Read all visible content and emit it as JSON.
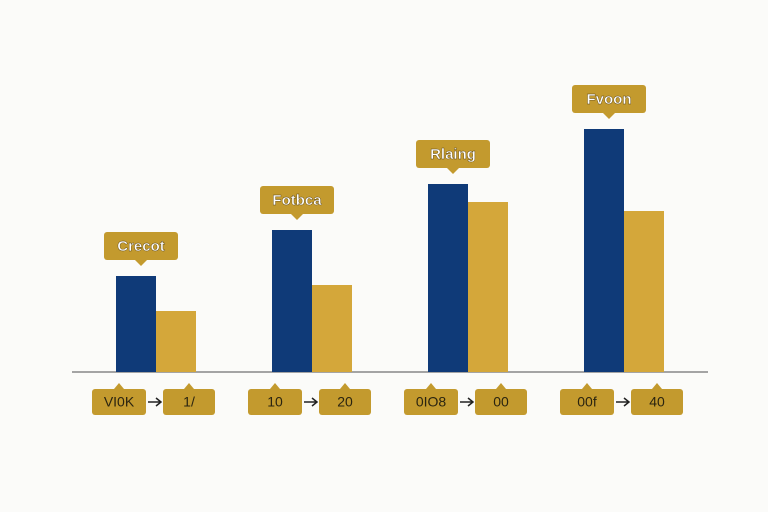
{
  "chart_data": {
    "type": "bar",
    "categories": [
      "Crecot",
      "Fotbca",
      "Rlaing",
      "Fvoon"
    ],
    "series": [
      {
        "color": "#0f3a78",
        "values": [
          96,
          142,
          188,
          243
        ]
      },
      {
        "color": "#d4a73a",
        "values": [
          61,
          87,
          170,
          161
        ]
      }
    ],
    "from_labels": [
      "VI0K",
      "10",
      "0IO8",
      "00f"
    ],
    "to_labels": [
      "1/",
      "20",
      "00",
      "40"
    ],
    "label_color": "#c39a2e"
  }
}
